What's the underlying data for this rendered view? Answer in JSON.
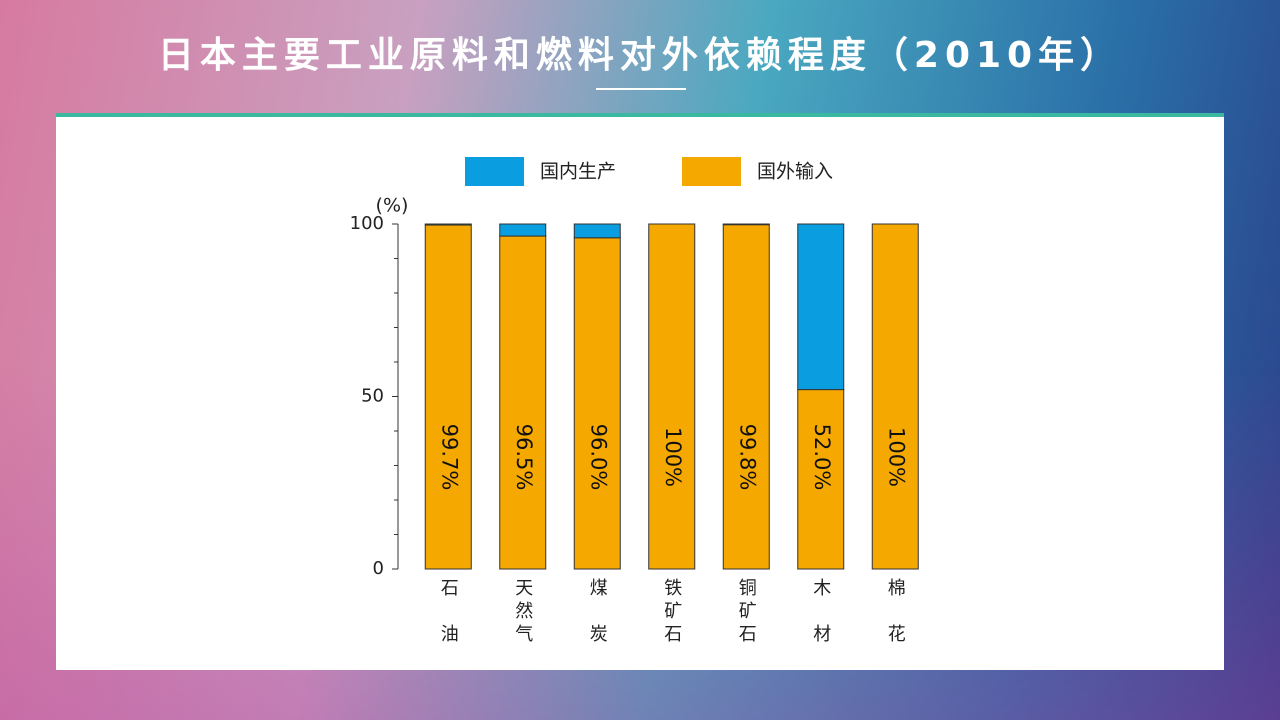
{
  "title": "日本主要工业原料和燃料对外依赖程度（2010年）",
  "chart_data": {
    "type": "stacked_bar",
    "y_label": "(%)",
    "categories": [
      "石油",
      "天然气",
      "煤炭",
      "铁矿石",
      "铜矿石",
      "木材",
      "棉花"
    ],
    "series": [
      {
        "name": "国内生产",
        "color": "#0a9de0",
        "values": [
          0.3,
          3.5,
          4.0,
          0,
          0.2,
          48.0,
          0
        ]
      },
      {
        "name": "国外输入",
        "color": "#f5a800",
        "values": [
          99.7,
          96.5,
          96.0,
          100,
          99.8,
          52.0,
          100
        ],
        "value_labels": [
          "99.7%",
          "96.5%",
          "96.0%",
          "100%",
          "99.8%",
          "52.0%",
          "100%"
        ]
      }
    ],
    "ylim": [
      0,
      100
    ],
    "yticks": [
      0,
      50,
      100
    ],
    "yminorticks": [
      10,
      20,
      30,
      40,
      60,
      70,
      80,
      90
    ]
  }
}
